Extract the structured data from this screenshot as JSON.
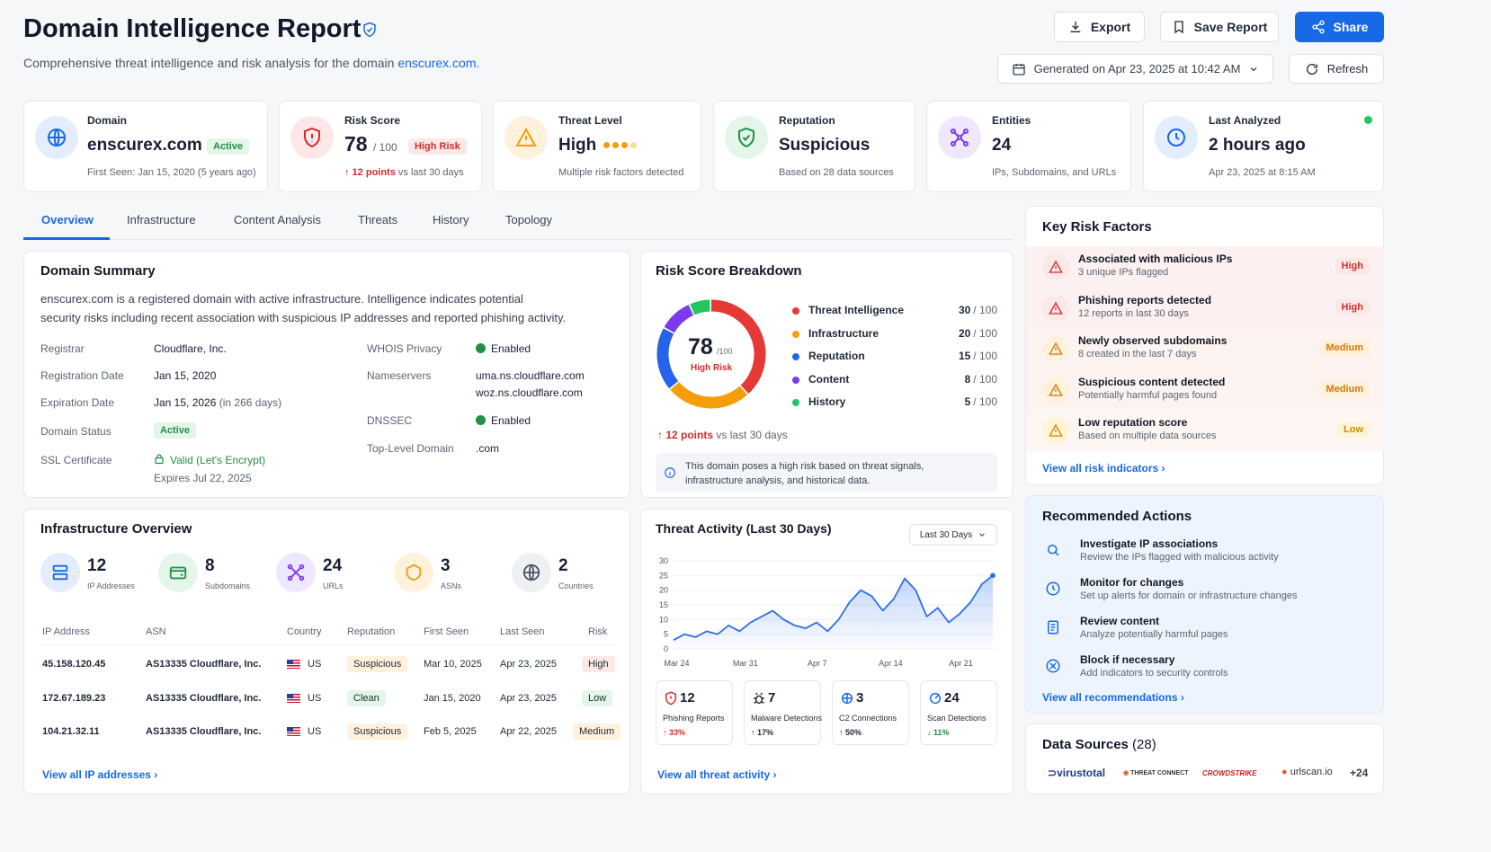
{
  "header": {
    "title": "Domain Intelligence Report",
    "subtitle_prefix": "Comprehensive threat intelligence and risk analysis for the domain",
    "subtitle_domain": "enscurex.com.",
    "export_label": "Export",
    "save_label": "Save Report",
    "share_label": "Share",
    "generated": "Generated on Apr 23, 2025 at 10:42 AM",
    "refresh_label": "Refresh"
  },
  "stats": {
    "domain": {
      "label": "Domain",
      "value": "enscurex.com",
      "badge": "Active",
      "sub": "First Seen: Jan 15, 2020 (5 years ago)"
    },
    "risk": {
      "label": "Risk Score",
      "value": "78",
      "max": "/ 100",
      "badge": "High Risk",
      "change": "↑ 12 points",
      "change_sub": "vs last 30 days"
    },
    "threat": {
      "label": "Threat Level",
      "value": "High",
      "sub": "Multiple risk factors detected"
    },
    "reputation": {
      "label": "Reputation",
      "value": "Suspicious",
      "sub": "Based on 28 data sources"
    },
    "entities": {
      "label": "Entities",
      "value": "24",
      "sub": "IPs, Subdomains, and URLs"
    },
    "analyzed": {
      "label": "Last Analyzed",
      "value": "2 hours ago",
      "sub": "Apr 23, 2025 at 8:15 AM"
    }
  },
  "tabs": [
    "Overview",
    "Infrastructure",
    "Content Analysis",
    "Threats",
    "History",
    "Topology"
  ],
  "summary": {
    "title": "Domain Summary",
    "desc1": "enscurex.com is a registered domain with active infrastructure. Intelligence indicates potential",
    "desc2": "security risks including recent association with suspicious IP addresses and reported phishing activity.",
    "registrar_k": "Registrar",
    "registrar_v": "Cloudflare, Inc.",
    "regdate_k": "Registration Date",
    "regdate_v": "Jan 15, 2020",
    "expdate_k": "Expiration Date",
    "expdate_v": "Jan 15, 2026",
    "expdate_note": "(in 266 days)",
    "status_k": "Domain Status",
    "status_v": "Active",
    "ssl_k": "SSL Certificate",
    "ssl_v": "Valid (Let's Encrypt)",
    "ssl_exp": "Expires Jul 22, 2025",
    "whois_k": "WHOIS Privacy",
    "whois_v": "Enabled",
    "ns_k": "Nameservers",
    "ns_v1": "uma.ns.cloudflare.com",
    "ns_v2": "woz.ns.cloudflare.com",
    "dnssec_k": "DNSSEC",
    "dnssec_v": "Enabled",
    "tld_k": "Top-Level Domain",
    "tld_v": ".com"
  },
  "breakdown": {
    "title": "Risk Score Breakdown",
    "score": "78",
    "max": "/100",
    "level": "High Risk",
    "items": [
      {
        "name": "Threat Intelligence",
        "score": "30",
        "max": "/ 100",
        "color": "#e53935"
      },
      {
        "name": "Infrastructure",
        "score": "20",
        "max": "/ 100",
        "color": "#f59e0b"
      },
      {
        "name": "Reputation",
        "score": "15",
        "max": "/ 100",
        "color": "#2563eb"
      },
      {
        "name": "Content",
        "score": "8",
        "max": "/ 100",
        "color": "#7c3aed"
      },
      {
        "name": "History",
        "score": "5",
        "max": "/ 100",
        "color": "#22c55e"
      }
    ],
    "change": "↑ 12 points",
    "change_sub": "vs last 30 days",
    "note1": "This domain poses a high risk based on threat signals,",
    "note2": "infrastructure analysis, and historical data."
  },
  "risk_factors": {
    "title": "Key Risk Factors",
    "items": [
      {
        "title": "Associated with malicious IPs",
        "sub": "3 unique IPs flagged",
        "level": "High"
      },
      {
        "title": "Phishing reports detected",
        "sub": "12 reports in last 30 days",
        "level": "High"
      },
      {
        "title": "Newly observed subdomains",
        "sub": "8 created in the last 7 days",
        "level": "Medium"
      },
      {
        "title": "Suspicious content detected",
        "sub": "Potentially harmful pages found",
        "level": "Medium"
      },
      {
        "title": "Low reputation score",
        "sub": "Based on multiple data sources",
        "level": "Low"
      }
    ],
    "link": "View all risk indicators"
  },
  "infra": {
    "title": "Infrastructure Overview",
    "counts": [
      {
        "n": "12",
        "l": "IP Addresses"
      },
      {
        "n": "8",
        "l": "Subdomains"
      },
      {
        "n": "24",
        "l": "URLs"
      },
      {
        "n": "3",
        "l": "ASNs"
      },
      {
        "n": "2",
        "l": "Countries"
      }
    ],
    "headers": [
      "IP Address",
      "ASN",
      "Country",
      "Reputation",
      "First Seen",
      "Last Seen",
      "Risk"
    ],
    "rows": [
      {
        "ip": "45.158.120.45",
        "asn": "AS13335 Cloudflare, Inc.",
        "country": "US",
        "rep": "Suspicious",
        "first": "Mar 10, 2025",
        "last": "Apr 23, 2025",
        "risk": "High"
      },
      {
        "ip": "172.67.189.23",
        "asn": "AS13335 Cloudflare, Inc.",
        "country": "US",
        "rep": "Clean",
        "first": "Jan 15, 2020",
        "last": "Apr 23, 2025",
        "risk": "Low"
      },
      {
        "ip": "104.21.32.11",
        "asn": "AS13335 Cloudflare, Inc.",
        "country": "US",
        "rep": "Suspicious",
        "first": "Feb 5, 2025",
        "last": "Apr 22, 2025",
        "risk": "Medium"
      }
    ],
    "link": "View all IP addresses"
  },
  "activity": {
    "title": "Threat Activity (Last 30 Days)",
    "range": "Last 30 Days",
    "mini": [
      {
        "n": "12",
        "l": "Phishing Reports",
        "c": "↑ 33%"
      },
      {
        "n": "7",
        "l": "Malware Detections",
        "c": "↑ 17%"
      },
      {
        "n": "3",
        "l": "C2 Connections",
        "c": "↑ 50%"
      },
      {
        "n": "24",
        "l": "Scan Detections",
        "c": "↓ 11%"
      }
    ],
    "link": "View all threat activity"
  },
  "chart_data": {
    "type": "area",
    "title": "Threat Activity (Last 30 Days)",
    "xlabel": "",
    "ylabel": "",
    "ylim": [
      0,
      30
    ],
    "yticks": [
      "0",
      "5",
      "10",
      "15",
      "20",
      "25",
      "30"
    ],
    "xticks": [
      "Mar 24",
      "Mar 31",
      "Apr 7",
      "Apr 14",
      "Apr 21"
    ],
    "values": [
      3,
      5,
      4,
      6,
      5,
      8,
      6,
      9,
      11,
      13,
      10,
      8,
      7,
      9,
      6,
      10,
      16,
      20,
      18,
      13,
      17,
      24,
      20,
      11,
      14,
      9,
      12,
      16,
      22,
      25
    ]
  },
  "actions": {
    "title": "Recommended Actions",
    "items": [
      {
        "title": "Investigate IP associations",
        "sub": "Review the IPs flagged with malicious activity"
      },
      {
        "title": "Monitor for changes",
        "sub": "Set up alerts for domain or infrastructure changes"
      },
      {
        "title": "Review content",
        "sub": "Analyze potentially harmful pages"
      },
      {
        "title": "Block if necessary",
        "sub": "Add indicators to security controls"
      }
    ],
    "link": "View all recommendations"
  },
  "sources": {
    "title": "Data Sources",
    "count": "(28)",
    "logos": [
      "virustotal",
      "THREAT CONNECT",
      "CROWDSTRIKE",
      "urlscan.io"
    ],
    "more": "+24"
  }
}
